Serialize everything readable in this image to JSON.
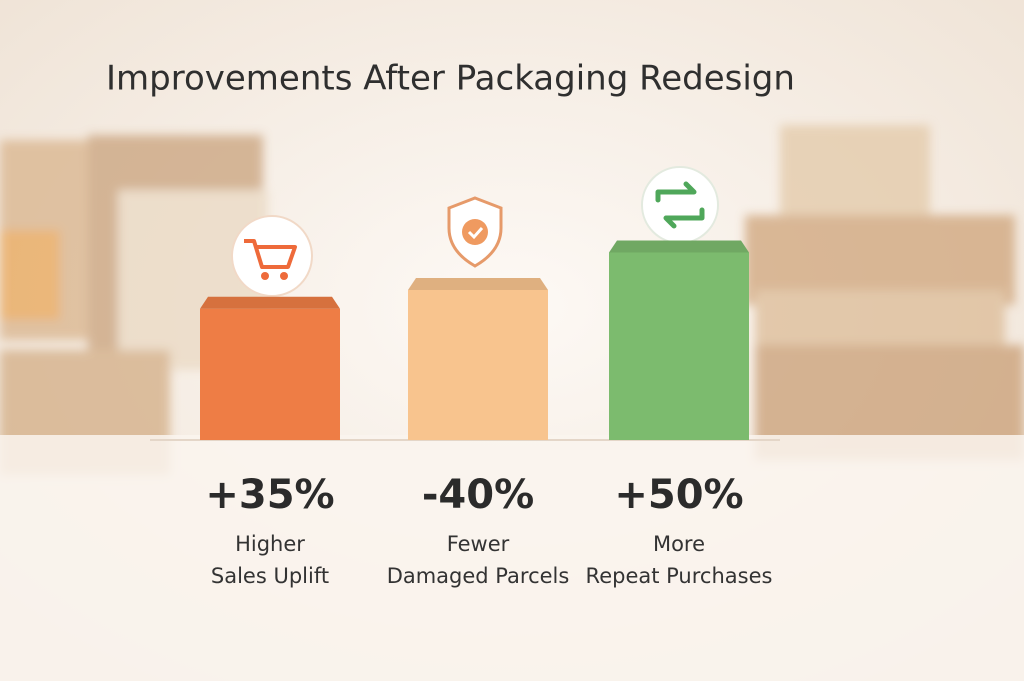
{
  "chart_data": {
    "type": "bar",
    "title": "Improvements After Packaging Redesign",
    "categories": [
      [
        "Higher",
        "Sales Uplift"
      ],
      [
        "Fewer",
        "Damaged Parcels"
      ],
      [
        "More",
        "Repeat Purchases"
      ]
    ],
    "values": [
      35,
      -40,
      50
    ],
    "value_labels": [
      "+35%",
      "-40%",
      "+50%"
    ],
    "colors": [
      "#ee7d45",
      "#f8c48e",
      "#7cbb6e"
    ]
  }
}
